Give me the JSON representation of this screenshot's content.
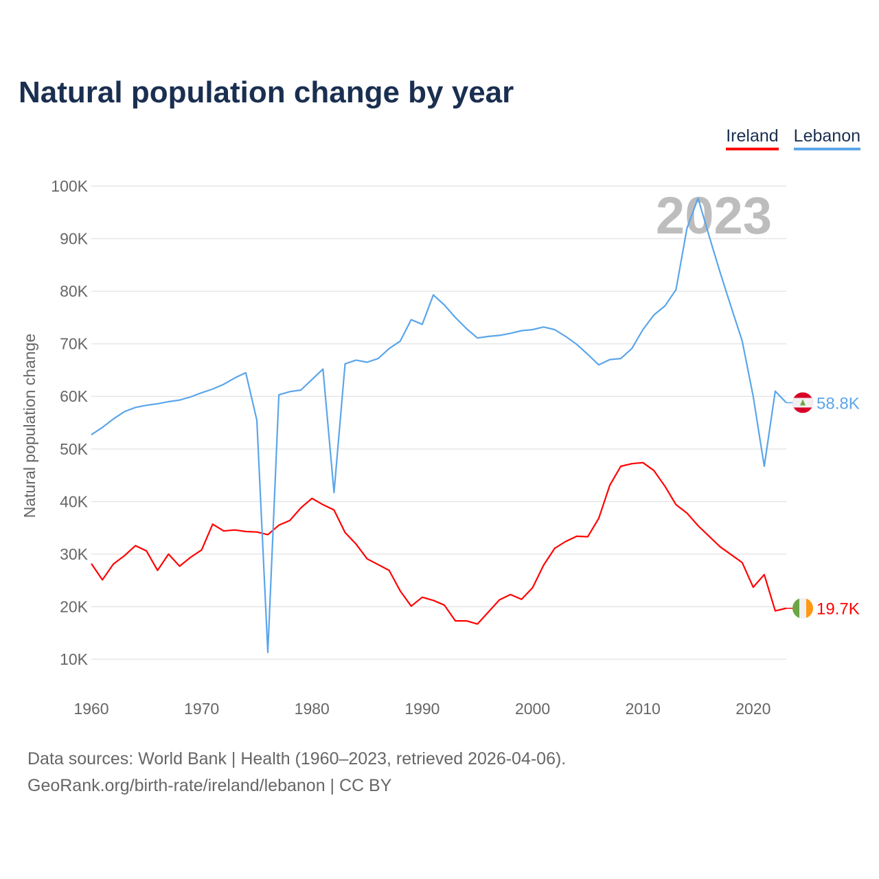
{
  "chart_data": {
    "type": "line",
    "title": "Natural population change by year",
    "xlabel": "",
    "ylabel": "Natural population change",
    "xlim": [
      1960,
      2023
    ],
    "ylim": [
      10000,
      100000
    ],
    "grid": true,
    "legend_position": "top-right",
    "year_watermark": "2023",
    "x_ticks": [
      "1960",
      "1970",
      "1980",
      "1990",
      "2000",
      "2010",
      "2020"
    ],
    "y_ticks": [
      {
        "value": 10000,
        "label": "10K"
      },
      {
        "value": 20000,
        "label": "20K"
      },
      {
        "value": 30000,
        "label": "30K"
      },
      {
        "value": 40000,
        "label": "40K"
      },
      {
        "value": 50000,
        "label": "50K"
      },
      {
        "value": 60000,
        "label": "60K"
      },
      {
        "value": 70000,
        "label": "70K"
      },
      {
        "value": 80000,
        "label": "80K"
      },
      {
        "value": 90000,
        "label": "90K"
      },
      {
        "value": 100000,
        "label": "100K"
      }
    ],
    "x_start": 1960,
    "series": [
      {
        "name": "Ireland",
        "color": "#ff0000",
        "end_label": "19.7K",
        "flag": "ireland-flag",
        "values": [
          28200,
          25100,
          28100,
          29700,
          31600,
          30600,
          26900,
          30000,
          27700,
          29400,
          30800,
          35700,
          34400,
          34600,
          34300,
          34200,
          33700,
          35500,
          36400,
          38800,
          40600,
          39400,
          38400,
          34100,
          31900,
          29100,
          28000,
          26900,
          23000,
          20100,
          21800,
          21200,
          20300,
          17300,
          17300,
          16700,
          19000,
          21300,
          22300,
          21400,
          23600,
          27900,
          31100,
          32400,
          33400,
          33300,
          36800,
          43100,
          46700,
          47200,
          47400,
          45900,
          42900,
          39400,
          37800,
          35400,
          33400,
          31400,
          29900,
          28400,
          23700,
          26100,
          19200,
          19700
        ]
      },
      {
        "name": "Lebanon",
        "color": "#5aa5ea",
        "end_label": "58.8K",
        "flag": "lebanon-flag",
        "values": [
          52700,
          54100,
          55700,
          57100,
          57900,
          58300,
          58600,
          59000,
          59300,
          59900,
          60700,
          61400,
          62300,
          63500,
          64500,
          55500,
          11300,
          60300,
          60900,
          61200,
          63200,
          65200,
          41700,
          66200,
          66900,
          66500,
          67200,
          69100,
          70500,
          74600,
          73700,
          79300,
          77400,
          75000,
          72900,
          71100,
          71400,
          71600,
          72000,
          72500,
          72700,
          73200,
          72700,
          71400,
          69900,
          68000,
          66000,
          67000,
          67200,
          69100,
          72700,
          75500,
          77200,
          80300,
          92000,
          97700,
          90500,
          83600,
          77000,
          70600,
          60000,
          46700,
          61000,
          58800
        ]
      }
    ]
  },
  "footer": {
    "line1": "Data sources: World Bank | Health (1960–2023, retrieved 2026-04-06).",
    "line2": "GeoRank.org/birth-rate/ireland/lebanon | CC BY"
  }
}
